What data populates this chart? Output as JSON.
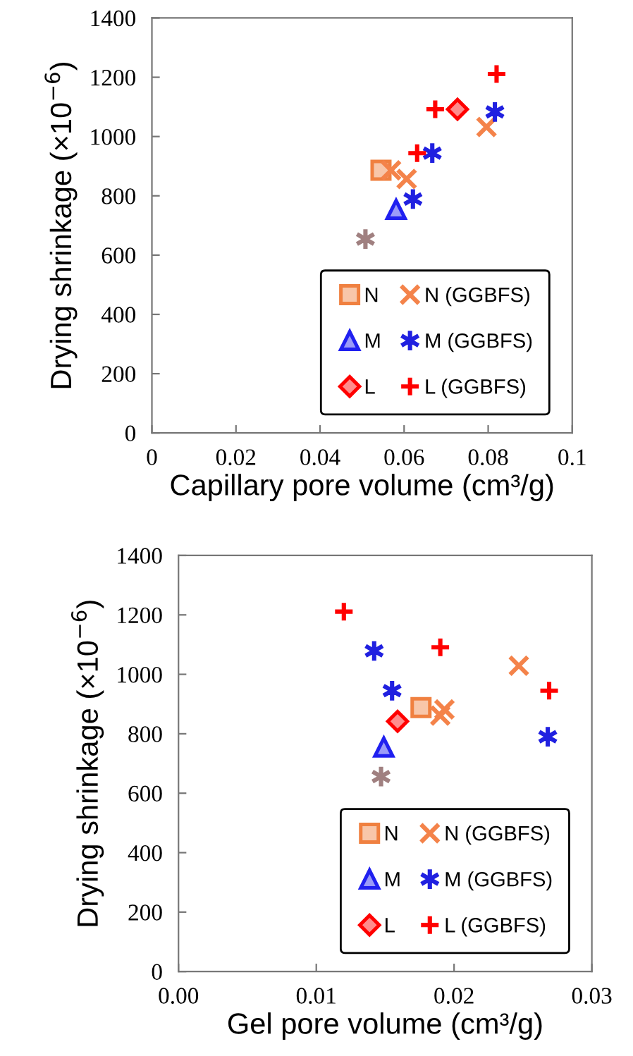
{
  "chart_data": [
    {
      "type": "scatter",
      "xlabel": "Capillary pore volume (cm³/g)",
      "ylabel": "Drying shrinkage (×10$^{−6}$)",
      "xlim": [
        0,
        0.1
      ],
      "xticks": [
        0,
        0.02,
        0.04,
        0.06,
        0.08,
        0.1
      ],
      "ylim": [
        0,
        1400
      ],
      "yticks": [
        0,
        200,
        400,
        600,
        800,
        1000,
        1200,
        1400
      ],
      "grid": false,
      "legend": "bottom right",
      "series": [
        {
          "name": "N",
          "marker": "square",
          "color": "#f08040",
          "x": [
            0.0545
          ],
          "values": [
            886
          ]
        },
        {
          "name": "M",
          "marker": "triangle",
          "color": "#2020f0",
          "x": [
            0.0581
          ],
          "values": [
            754
          ]
        },
        {
          "name": "L",
          "marker": "diamond",
          "color": "#ff0000",
          "x": [
            0.0727
          ],
          "values": [
            1092
          ]
        },
        {
          "name": "N (GGBFS)",
          "marker": "cross",
          "color": "#f4834a",
          "x": [
            0.0569,
            0.0606,
            0.0796
          ],
          "values": [
            886,
            857,
            1032
          ]
        },
        {
          "name": "M (GGBFS)",
          "color": "#2020e0",
          "x": [
            0.0621,
            0.0667,
            0.0816
          ],
          "values": [
            789,
            944,
            1083
          ]
        },
        {
          "name": "L (GGBFS)",
          "marker": "plus",
          "color": "#ff0000",
          "x": [
            0.0631,
            0.0674,
            0.082
          ],
          "values": [
            944,
            1092,
            1211
          ]
        },
        {
          "color": "#a08080",
          "x": [
            0.0508
          ],
          "values": [
            654
          ]
        }
      ]
    },
    {
      "type": "scatter",
      "xlabel": "Gel pore volume (cm³/g)",
      "ylabel": "Drying shrinkage (×10$^{−6}$)",
      "xlim": [
        0,
        0.03
      ],
      "xticks": [
        {
          "value": 0,
          "label": "0.00"
        },
        {
          "value": 0.01,
          "label": "0.01"
        },
        {
          "value": 0.02,
          "label": "0.02"
        },
        {
          "value": 0.03,
          "label": "0.03"
        }
      ],
      "ylim": [
        0,
        1400
      ],
      "yticks": [
        0,
        200,
        400,
        600,
        800,
        1000,
        1200,
        1400
      ],
      "grid": false,
      "legend": "bottom right",
      "series": [
        {
          "name": "N",
          "marker": "square",
          "color": "#f08040",
          "x": [
            0.0176
          ],
          "values": [
            888
          ]
        },
        {
          "name": "M",
          "marker": "triangle",
          "color": "#2020f0",
          "x": [
            0.0149
          ],
          "values": [
            755
          ]
        },
        {
          "name": "L",
          "marker": "diamond",
          "color": "#ff0000",
          "x": [
            0.0159
          ],
          "values": [
            842
          ]
        },
        {
          "name": "N (GGBFS)",
          "marker": "cross",
          "color": "#f4834a",
          "x": [
            0.0193,
            0.019,
            0.0247
          ],
          "values": [
            882,
            861,
            1029
          ]
        },
        {
          "name": "M (GGBFS)",
          "color": "#2020e0",
          "x": [
            0.0142,
            0.0155,
            0.0268
          ],
          "values": [
            1079,
            945,
            790
          ]
        },
        {
          "name": "L (GGBFS)",
          "marker": "plus",
          "color": "#ff0000",
          "x": [
            0.012,
            0.019,
            0.0269
          ],
          "values": [
            1211,
            1091,
            945
          ]
        },
        {
          "color": "#a08080",
          "x": [
            0.0147
          ],
          "values": [
            656
          ]
        }
      ]
    }
  ]
}
